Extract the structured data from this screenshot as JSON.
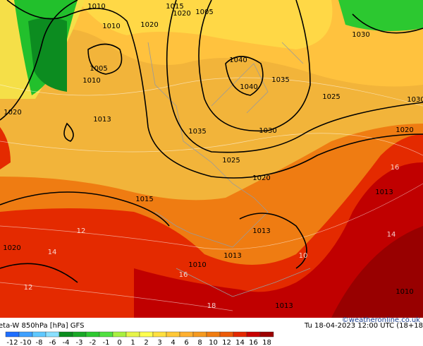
{
  "map": {
    "isobar_labels": [
      "1010",
      "1015",
      "1005",
      "1010",
      "1020",
      "1020",
      "1005",
      "1010",
      "1040",
      "1040",
      "1035",
      "1030",
      "1020",
      "1013",
      "1025",
      "1030",
      "1035",
      "1030",
      "1020",
      "1025",
      "1020",
      "1015",
      "1013",
      "1013",
      "1020",
      "1010",
      "1013",
      "1010",
      "1013"
    ],
    "theta_labels": [
      "12",
      "14",
      "16",
      "18",
      "10",
      "14",
      "16",
      "12"
    ]
  },
  "footer": {
    "title": "eta-W 850hPa [hPa] GFS",
    "time": "Tu 18-04-2023 12:00 UTC (18+18",
    "credit": "©weatheronline.co.uk"
  },
  "colorbar": [
    {
      "label": -12,
      "color": "#1e6eff"
    },
    {
      "label": -10,
      "color": "#3ea0ff"
    },
    {
      "label": -8,
      "color": "#5fc8ff"
    },
    {
      "label": -6,
      "color": "#8ae0ff"
    },
    {
      "label": -4,
      "color": "#0a8c1e"
    },
    {
      "label": -3,
      "color": "#18a826"
    },
    {
      "label": -2,
      "color": "#2cc830"
    },
    {
      "label": -1,
      "color": "#50e040"
    },
    {
      "label": 0,
      "color": "#a8f040"
    },
    {
      "label": 1,
      "color": "#e6f54a"
    },
    {
      "label": 2,
      "color": "#ffff50"
    },
    {
      "label": 3,
      "color": "#ffe040"
    },
    {
      "label": 4,
      "color": "#ffc838"
    },
    {
      "label": 6,
      "color": "#ffb030"
    },
    {
      "label": 8,
      "color": "#f59a20"
    },
    {
      "label": 10,
      "color": "#f07c10"
    },
    {
      "label": 12,
      "color": "#ec5a08"
    },
    {
      "label": 14,
      "color": "#e42800"
    },
    {
      "label": 16,
      "color": "#c80000"
    },
    {
      "label": 18,
      "color": "#9c0000"
    }
  ]
}
